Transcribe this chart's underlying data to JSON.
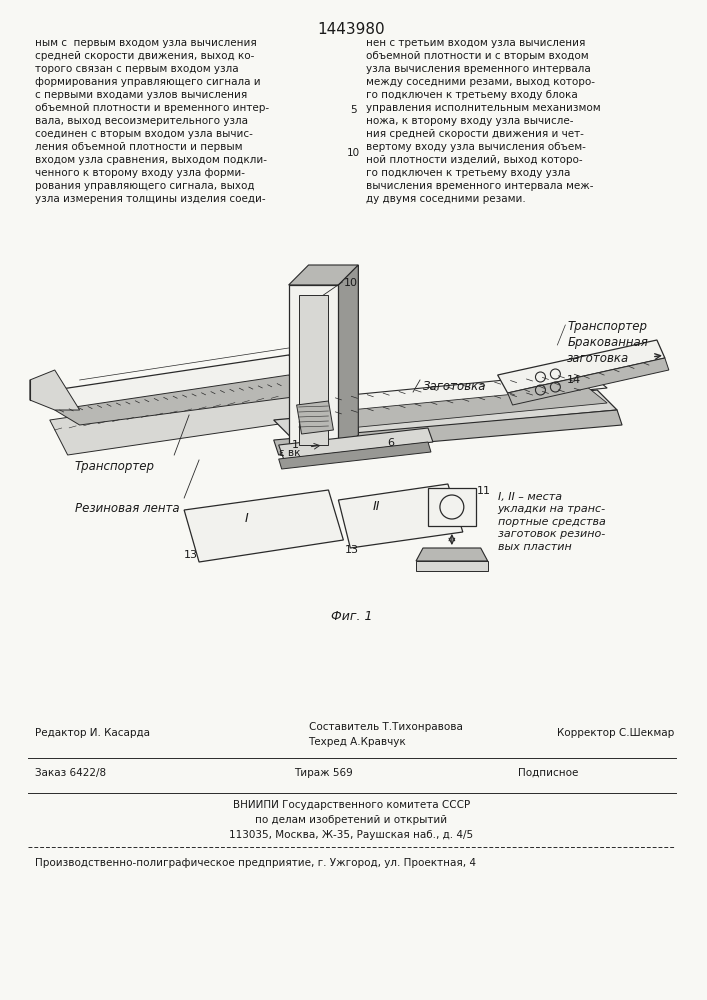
{
  "patent_number": "1443980",
  "background_color": "#f8f8f4",
  "text_color": "#1a1a1a",
  "left_column_text": "ным с  первым входом узла вычисления\nсредней скорости движения, выход ко-\nторого связан с первым входом узла\nформирования управляющего сигнала и\nс первыми входами узлов вычисления\nобъемной плотности и временного интер-\nвала, выход весоизмерительного узла\nсоединен с вторым входом узла вычис-\nления объемной плотности и первым\nвходом узла сравнения, выходом подкли-\nченного к второму входу узла форми-\nрования управляющего сигнала, выход\nузла измерения толщины изделия соеди-",
  "right_column_text": "нен с третьим входом узла вычисления\nобъемной плотности и с вторым входом\nузла вычисления временного интервала\nмежду соседними резами, выход которо-\nго подключен к третьему входу блока\nуправления исполнительным механизмом\nножа, к второму входу узла вычисле-\nния средней скорости движения и чет-\nвертому входу узла вычисления объем-\nной плотности изделий, выход которо-\nго подключен к третьему входу узла\nвычисления временного интервала меж-\nду двумя соседними резами.",
  "line_number_5": "5",
  "line_number_10": "10",
  "fig_caption": "Фиг. 1",
  "label_transporter_left": "Транспортер",
  "label_rubber_belt": "Резиновая лента",
  "label_zagotovka": "Заготовка",
  "label_transporter_right": "Транспортер\nБракованная\nзаготовка",
  "label_places": "I, II – места\nукладки на транс-\nпортные средства\nзаготовок резино-\nвых пластин",
  "label_I": "I",
  "label_II": "II",
  "label_evk": "ε вк",
  "label_6": "6",
  "label_1": "1",
  "label_10": "10",
  "label_11": "11",
  "label_13a": "13",
  "label_13b": "13",
  "label_14": "14",
  "footer_sestavitel": "Составитель Т.Тихонравова",
  "footer_tehred": "Техред А.Кравчук",
  "footer_redaktor": "Редактор И. Касарда",
  "footer_korrektor": "Корректор С.Шекмар",
  "footer_zakaz": "Заказ 6422/8",
  "footer_tirazh": "Тираж 569",
  "footer_podpisnoe": "Подписное",
  "footer_vniipи": "ВНИИПИ Государственного комитета СССР",
  "footer_po_delam": "по делам изобретений и открытий",
  "footer_address": "113035, Москва, Ж-35, Раушская наб., д. 4/5",
  "footer_proizv": "Производственно-полиграфическое предприятие, г. Ужгород, ул. Проектная, 4"
}
